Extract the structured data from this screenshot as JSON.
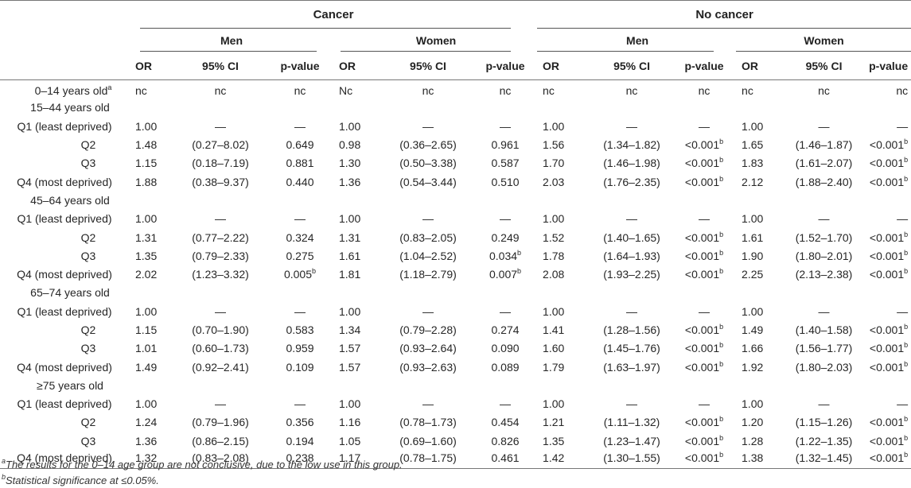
{
  "header": {
    "groups": [
      "Cancer",
      "No cancer"
    ],
    "sexes": [
      "Men",
      "Women",
      "Men",
      "Women"
    ],
    "columns": [
      "OR",
      "95% CI",
      "p-value"
    ]
  },
  "rows": [
    {
      "label": "0–14 years old",
      "sup": "a",
      "kind": "age",
      "cells": [
        "nc",
        "nc",
        "nc",
        "Nc",
        "nc",
        "nc",
        "nc",
        "nc",
        "nc",
        "nc",
        "nc",
        "nc"
      ],
      "sups": [
        "",
        "",
        "",
        "",
        "",
        "",
        "",
        "",
        "",
        "",
        "",
        ""
      ]
    },
    {
      "label": "15–44 years old",
      "kind": "age",
      "cells": [
        "",
        "",
        "",
        "",
        "",
        "",
        "",
        "",
        "",
        "",
        "",
        ""
      ],
      "sups": [
        "",
        "",
        "",
        "",
        "",
        "",
        "",
        "",
        "",
        "",
        "",
        ""
      ]
    },
    {
      "label": "Q1 (least deprived)",
      "kind": "q",
      "cells": [
        "1.00",
        "—",
        "—",
        "1.00",
        "—",
        "—",
        "1.00",
        "—",
        "—",
        "1.00",
        "—",
        "—"
      ],
      "sups": [
        "",
        "",
        "",
        "",
        "",
        "",
        "",
        "",
        "",
        "",
        "",
        ""
      ]
    },
    {
      "label": "Q2",
      "kind": "sub",
      "cells": [
        "1.48",
        "(0.27–8.02)",
        "0.649",
        "0.98",
        "(0.36–2.65)",
        "0.961",
        "1.56",
        "(1.34–1.82)",
        "<0.001",
        "1.65",
        "(1.46–1.87)",
        "<0.001"
      ],
      "sups": [
        "",
        "",
        "",
        "",
        "",
        "",
        "",
        "",
        "b",
        "",
        "",
        "b"
      ]
    },
    {
      "label": "Q3",
      "kind": "sub",
      "cells": [
        "1.15",
        "(0.18–7.19)",
        "0.881",
        "1.30",
        "(0.50–3.38)",
        "0.587",
        "1.70",
        "(1.46–1.98)",
        "<0.001",
        "1.83",
        "(1.61–2.07)",
        "<0.001"
      ],
      "sups": [
        "",
        "",
        "",
        "",
        "",
        "",
        "",
        "",
        "b",
        "",
        "",
        "b"
      ]
    },
    {
      "label": "Q4 (most deprived)",
      "kind": "q",
      "cells": [
        "1.88",
        "(0.38–9.37)",
        "0.440",
        "1.36",
        "(0.54–3.44)",
        "0.510",
        "2.03",
        "(1.76–2.35)",
        "<0.001",
        "2.12",
        "(1.88–2.40)",
        "<0.001"
      ],
      "sups": [
        "",
        "",
        "",
        "",
        "",
        "",
        "",
        "",
        "b",
        "",
        "",
        "b"
      ]
    },
    {
      "label": "45–64 years old",
      "kind": "age",
      "cells": [
        "",
        "",
        "",
        "",
        "",
        "",
        "",
        "",
        "",
        "",
        "",
        ""
      ],
      "sups": [
        "",
        "",
        "",
        "",
        "",
        "",
        "",
        "",
        "",
        "",
        "",
        ""
      ]
    },
    {
      "label": "Q1 (least deprived)",
      "kind": "q",
      "cells": [
        "1.00",
        "—",
        "—",
        "1.00",
        "—",
        "—",
        "1.00",
        "—",
        "—",
        "1.00",
        "—",
        "—"
      ],
      "sups": [
        "",
        "",
        "",
        "",
        "",
        "",
        "",
        "",
        "",
        "",
        "",
        ""
      ]
    },
    {
      "label": "Q2",
      "kind": "sub",
      "cells": [
        "1.31",
        "(0.77–2.22)",
        "0.324",
        "1.31",
        "(0.83–2.05)",
        "0.249",
        "1.52",
        "(1.40–1.65)",
        "<0.001",
        "1.61",
        "(1.52–1.70)",
        "<0.001"
      ],
      "sups": [
        "",
        "",
        "",
        "",
        "",
        "",
        "",
        "",
        "b",
        "",
        "",
        "b"
      ]
    },
    {
      "label": "Q3",
      "kind": "sub",
      "cells": [
        "1.35",
        "(0.79–2.33)",
        "0.275",
        "1.61",
        "(1.04–2.52)",
        "0.034",
        "1.78",
        "(1.64–1.93)",
        "<0.001",
        "1.90",
        "(1.80–2.01)",
        "<0.001"
      ],
      "sups": [
        "",
        "",
        "",
        "",
        "",
        "b",
        "",
        "",
        "b",
        "",
        "",
        "b"
      ]
    },
    {
      "label": "Q4 (most deprived)",
      "kind": "q",
      "cells": [
        "2.02",
        "(1.23–3.32)",
        "0.005",
        "1.81",
        "(1.18–2.79)",
        "0.007",
        "2.08",
        "(1.93–2.25)",
        "<0.001",
        "2.25",
        "(2.13–2.38)",
        "<0.001"
      ],
      "sups": [
        "",
        "",
        "b",
        "",
        "",
        "b",
        "",
        "",
        "b",
        "",
        "",
        "b"
      ]
    },
    {
      "label": "65–74 years old",
      "kind": "age",
      "cells": [
        "",
        "",
        "",
        "",
        "",
        "",
        "",
        "",
        "",
        "",
        "",
        ""
      ],
      "sups": [
        "",
        "",
        "",
        "",
        "",
        "",
        "",
        "",
        "",
        "",
        "",
        ""
      ]
    },
    {
      "label": "Q1 (least deprived)",
      "kind": "q",
      "cells": [
        "1.00",
        "—",
        "—",
        "1.00",
        "—",
        "—",
        "1.00",
        "—",
        "—",
        "1.00",
        "—",
        "—"
      ],
      "sups": [
        "",
        "",
        "",
        "",
        "",
        "",
        "",
        "",
        "",
        "",
        "",
        ""
      ]
    },
    {
      "label": "Q2",
      "kind": "sub",
      "cells": [
        "1.15",
        "(0.70–1.90)",
        "0.583",
        "1.34",
        "(0.79–2.28)",
        "0.274",
        "1.41",
        "(1.28–1.56)",
        "<0.001",
        "1.49",
        "(1.40–1.58)",
        "<0.001"
      ],
      "sups": [
        "",
        "",
        "",
        "",
        "",
        "",
        "",
        "",
        "b",
        "",
        "",
        "b"
      ]
    },
    {
      "label": "Q3",
      "kind": "sub",
      "cells": [
        "1.01",
        "(0.60–1.73)",
        "0.959",
        "1.57",
        "(0.93–2.64)",
        "0.090",
        "1.60",
        "(1.45–1.76)",
        "<0.001",
        "1.66",
        "(1.56–1.77)",
        "<0.001"
      ],
      "sups": [
        "",
        "",
        "",
        "",
        "",
        "",
        "",
        "",
        "b",
        "",
        "",
        "b"
      ]
    },
    {
      "label": "Q4 (most deprived)",
      "kind": "q",
      "cells": [
        "1.49",
        "(0.92–2.41)",
        "0.109",
        "1.57",
        "(0.93–2.63)",
        "0.089",
        "1.79",
        "(1.63–1.97)",
        "<0.001",
        "1.92",
        "(1.80–2.03)",
        "<0.001"
      ],
      "sups": [
        "",
        "",
        "",
        "",
        "",
        "",
        "",
        "",
        "b",
        "",
        "",
        "b"
      ]
    },
    {
      "label": "≥75 years old",
      "kind": "age",
      "cells": [
        "",
        "",
        "",
        "",
        "",
        "",
        "",
        "",
        "",
        "",
        "",
        ""
      ],
      "sups": [
        "",
        "",
        "",
        "",
        "",
        "",
        "",
        "",
        "",
        "",
        "",
        ""
      ]
    },
    {
      "label": "Q1 (least deprived)",
      "kind": "q",
      "cells": [
        "1.00",
        "—",
        "—",
        "1.00",
        "—",
        "—",
        "1.00",
        "—",
        "—",
        "1.00",
        "—",
        "—"
      ],
      "sups": [
        "",
        "",
        "",
        "",
        "",
        "",
        "",
        "",
        "",
        "",
        "",
        ""
      ]
    },
    {
      "label": "Q2",
      "kind": "sub",
      "cells": [
        "1.24",
        "(0.79–1.96)",
        "0.356",
        "1.16",
        "(0.78–1.73)",
        "0.454",
        "1.21",
        "(1.11–1.32)",
        "<0.001",
        "1.20",
        "(1.15–1.26)",
        "<0.001"
      ],
      "sups": [
        "",
        "",
        "",
        "",
        "",
        "",
        "",
        "",
        "b",
        "",
        "",
        "b"
      ]
    },
    {
      "label": "Q3",
      "kind": "sub",
      "cells": [
        "1.36",
        "(0.86–2.15)",
        "0.194",
        "1.05",
        "(0.69–1.60)",
        "0.826",
        "1.35",
        "(1.23–1.47)",
        "<0.001",
        "1.28",
        "(1.22–1.35)",
        "<0.001"
      ],
      "sups": [
        "",
        "",
        "",
        "",
        "",
        "",
        "",
        "",
        "b",
        "",
        "",
        "b"
      ]
    },
    {
      "label": "Q4 (most deprived)",
      "kind": "q",
      "cells": [
        "1.32",
        "(0.83–2.08)",
        "0.238",
        "1.17",
        "(0.78–1.75)",
        "0.461",
        "1.42",
        "(1.30–1.55)",
        "<0.001",
        "1.38",
        "(1.32–1.45)",
        "<0.001"
      ],
      "sups": [
        "",
        "",
        "",
        "",
        "",
        "",
        "",
        "",
        "b",
        "",
        "",
        "b"
      ]
    }
  ],
  "footnotes": [
    {
      "mark": "a",
      "text": "The results for the 0–14 age group are not conclusive, due to the low use in this group."
    },
    {
      "mark": "b",
      "text": "Statistical significance at ≤0.05%."
    }
  ]
}
